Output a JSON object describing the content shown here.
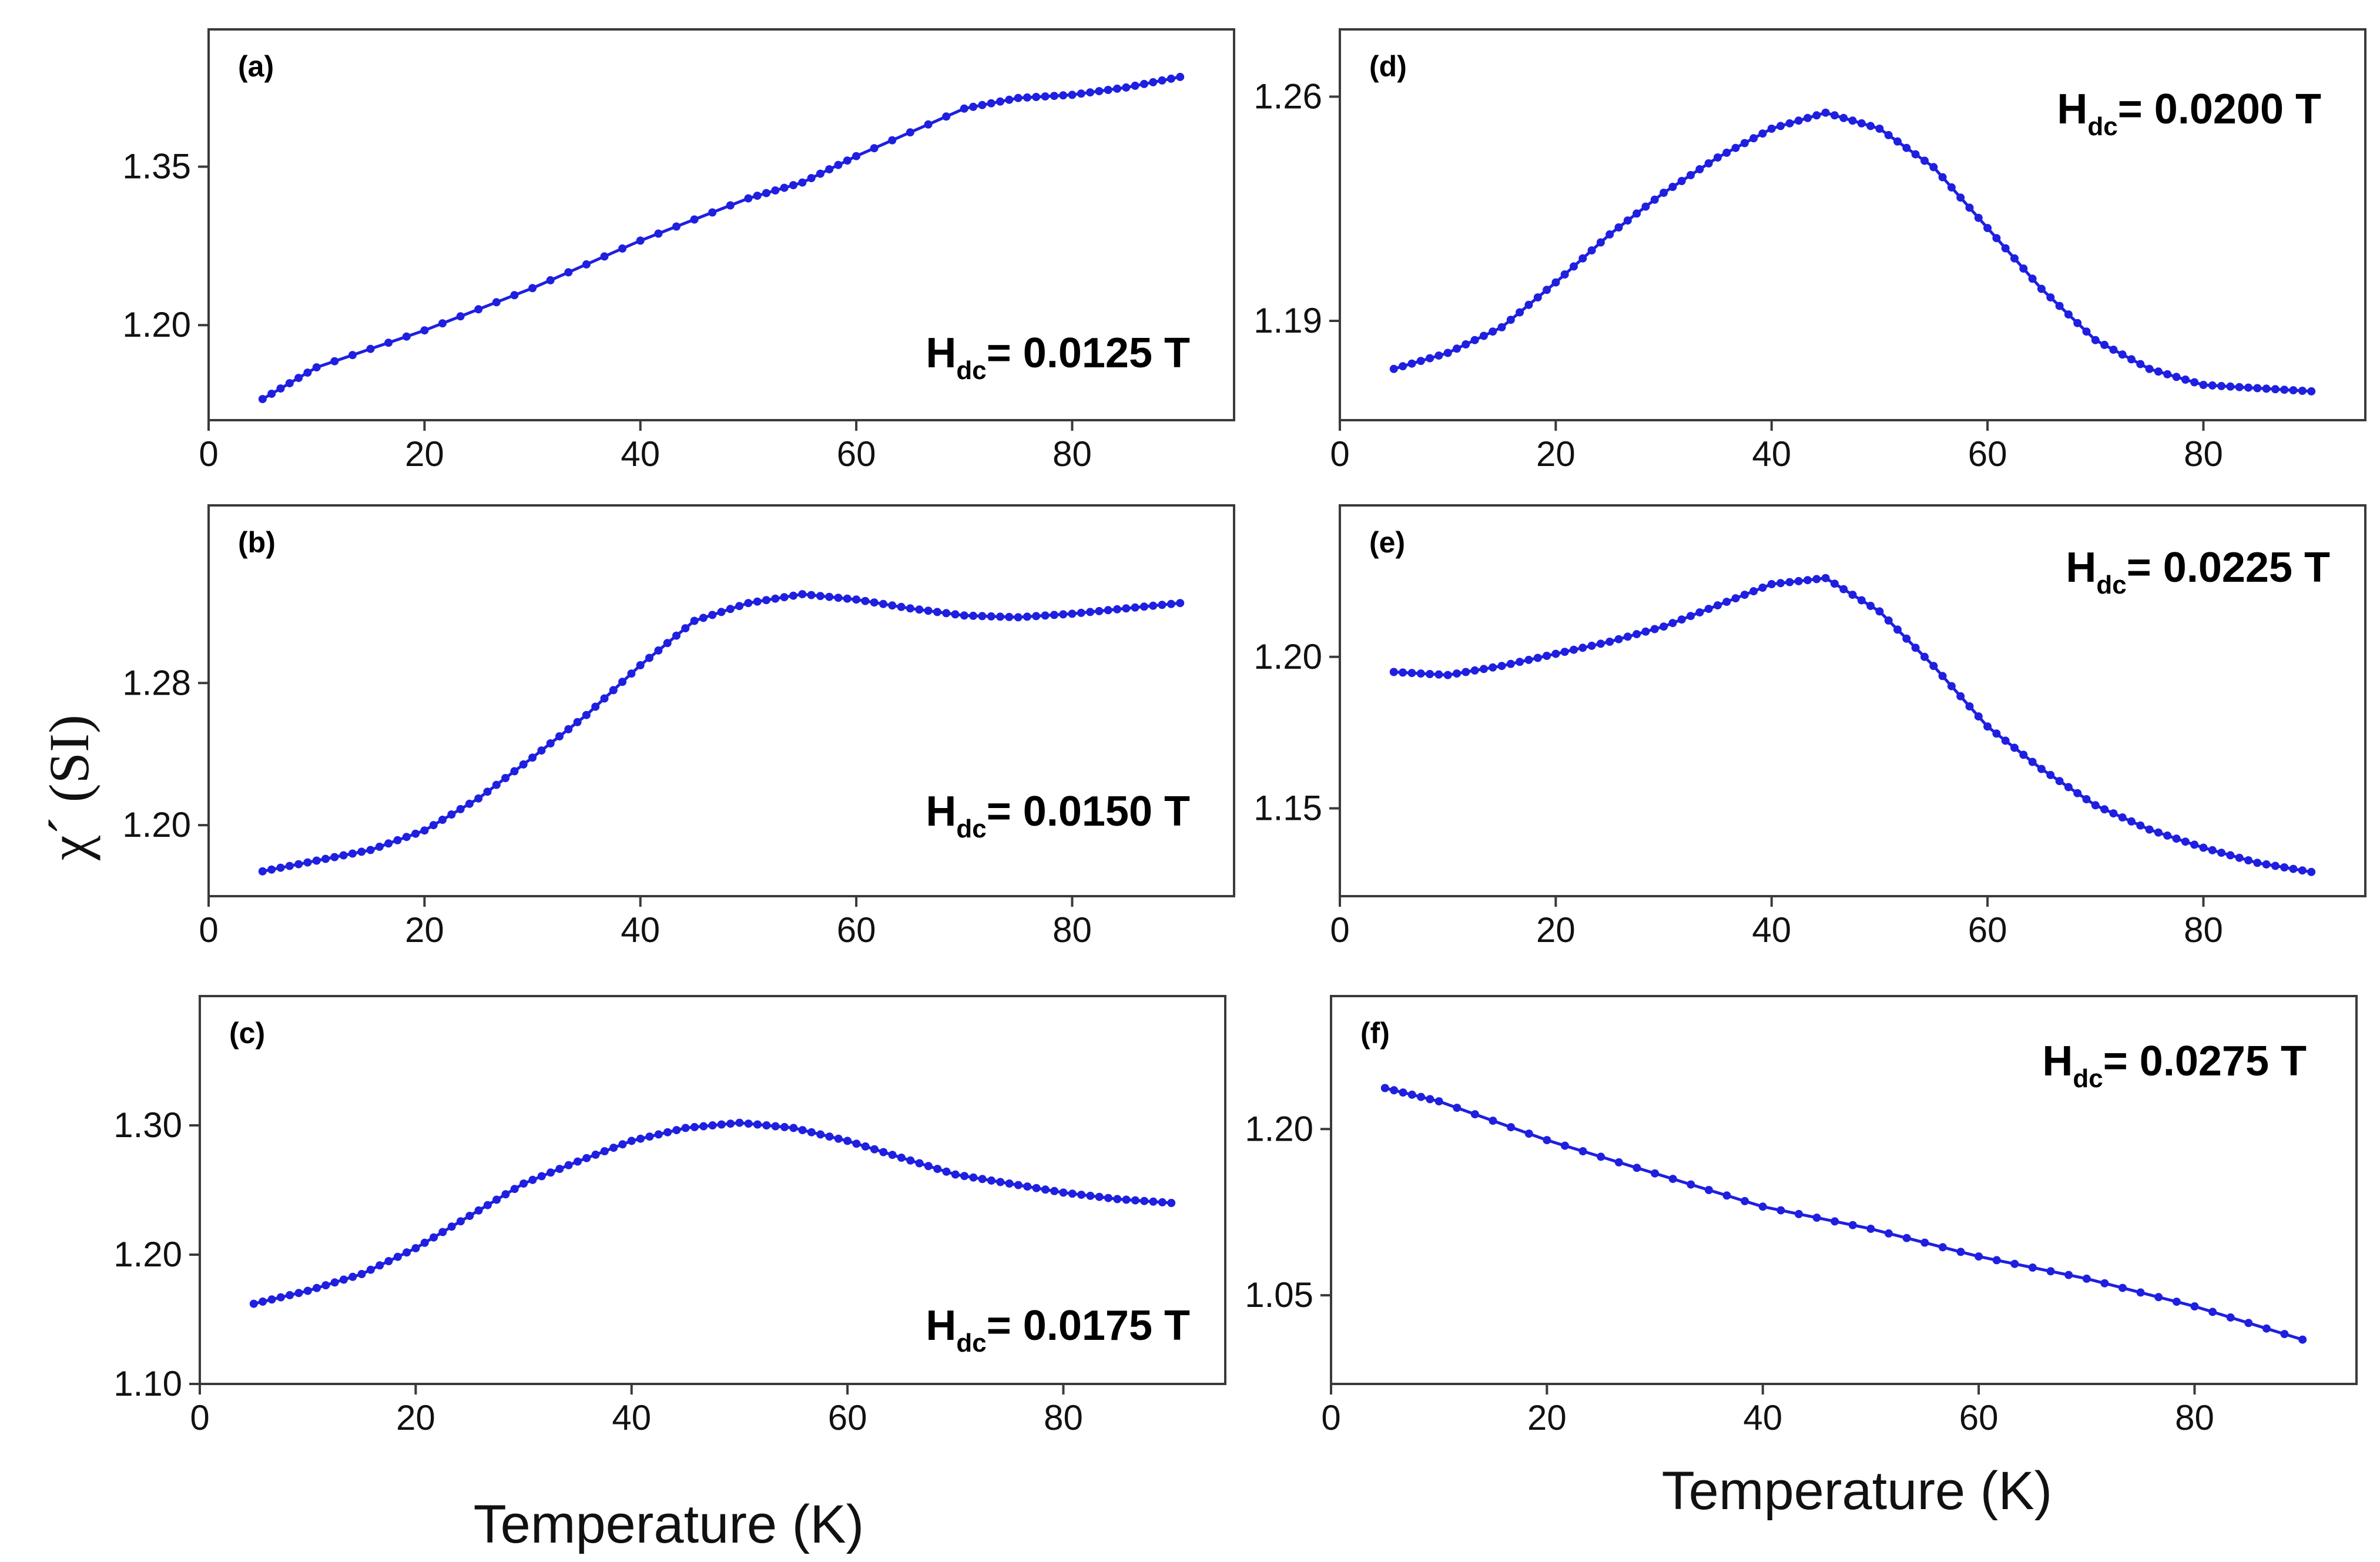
{
  "y_axis_label": "χ´ (SI)",
  "x_axis_label_left": "Temperature (K)",
  "x_axis_label_right": "Temperature (K)",
  "series_color": "#1f1fe0",
  "chart_data": [
    {
      "type": "line",
      "panel": "(a)",
      "field_prefix": "H",
      "field_sub": "dc",
      "field_value": "= 0.0125 T",
      "xlim": [
        0,
        95
      ],
      "xticks": [
        0,
        20,
        40,
        60,
        80
      ],
      "ylim": [
        1.11,
        1.48
      ],
      "yticks": [
        1.2,
        1.35
      ],
      "ytick_labels": [
        "1.20",
        "1.35"
      ],
      "x": [
        5,
        10,
        20,
        30,
        40,
        50,
        55,
        60,
        70,
        75,
        80,
        85,
        90
      ],
      "values": [
        1.13,
        1.16,
        1.195,
        1.235,
        1.28,
        1.32,
        1.335,
        1.36,
        1.405,
        1.415,
        1.418,
        1.425,
        1.435
      ]
    },
    {
      "type": "line",
      "panel": "(b)",
      "field_prefix": "H",
      "field_sub": "dc",
      "field_value": "= 0.0150 T",
      "xlim": [
        0,
        95
      ],
      "xticks": [
        0,
        20,
        40,
        60,
        80
      ],
      "ylim": [
        1.16,
        1.38
      ],
      "yticks": [
        1.2,
        1.28
      ],
      "ytick_labels": [
        "1.20",
        "1.28"
      ],
      "x": [
        5,
        10,
        15,
        20,
        25,
        30,
        35,
        40,
        45,
        50,
        55,
        60,
        65,
        70,
        75,
        80,
        85,
        90
      ],
      "values": [
        1.174,
        1.18,
        1.186,
        1.197,
        1.215,
        1.238,
        1.262,
        1.29,
        1.315,
        1.325,
        1.33,
        1.327,
        1.322,
        1.318,
        1.317,
        1.319,
        1.322,
        1.325
      ]
    },
    {
      "type": "line",
      "panel": "(c)",
      "field_prefix": "H",
      "field_sub": "dc",
      "field_value": "= 0.0175 T",
      "xlim": [
        0,
        95
      ],
      "xticks": [
        0,
        20,
        40,
        60,
        80
      ],
      "ylim": [
        1.1,
        1.4
      ],
      "yticks": [
        1.1,
        1.2,
        1.3
      ],
      "ytick_labels": [
        "1.10",
        "1.20",
        "1.30"
      ],
      "x": [
        5,
        10,
        15,
        20,
        25,
        30,
        35,
        40,
        45,
        50,
        55,
        60,
        65,
        70,
        75,
        80,
        85,
        90
      ],
      "values": [
        1.162,
        1.172,
        1.185,
        1.205,
        1.23,
        1.255,
        1.272,
        1.288,
        1.298,
        1.302,
        1.298,
        1.288,
        1.275,
        1.262,
        1.255,
        1.248,
        1.243,
        1.24
      ]
    },
    {
      "type": "line",
      "panel": "(d)",
      "field_prefix": "H",
      "field_sub": "dc",
      "field_value": "= 0.0200 T",
      "xlim": [
        0,
        95
      ],
      "xticks": [
        0,
        20,
        40,
        60,
        80
      ],
      "ylim": [
        1.159,
        1.281
      ],
      "yticks": [
        1.19,
        1.26
      ],
      "ytick_labels": [
        "1.19",
        "1.26"
      ],
      "x": [
        5,
        10,
        15,
        20,
        25,
        30,
        35,
        40,
        45,
        50,
        55,
        60,
        65,
        70,
        75,
        80,
        85,
        90
      ],
      "values": [
        1.175,
        1.18,
        1.188,
        1.202,
        1.217,
        1.23,
        1.241,
        1.25,
        1.255,
        1.25,
        1.238,
        1.219,
        1.2,
        1.184,
        1.175,
        1.17,
        1.169,
        1.168
      ]
    },
    {
      "type": "line",
      "panel": "(e)",
      "field_prefix": "H",
      "field_sub": "dc",
      "field_value": "= 0.0225 T",
      "xlim": [
        0,
        95
      ],
      "xticks": [
        0,
        20,
        40,
        60,
        80
      ],
      "ylim": [
        1.121,
        1.25
      ],
      "yticks": [
        1.15,
        1.2
      ],
      "ytick_labels": [
        "1.15",
        "1.20"
      ],
      "x": [
        5,
        10,
        15,
        20,
        25,
        30,
        35,
        40,
        45,
        50,
        55,
        60,
        65,
        70,
        75,
        80,
        85,
        90
      ],
      "values": [
        1.195,
        1.194,
        1.197,
        1.201,
        1.205,
        1.21,
        1.217,
        1.224,
        1.226,
        1.215,
        1.197,
        1.177,
        1.163,
        1.151,
        1.143,
        1.137,
        1.132,
        1.129
      ]
    },
    {
      "type": "line",
      "panel": "(f)",
      "field_prefix": "H",
      "field_sub": "dc",
      "field_value": "= 0.0275 T",
      "xlim": [
        0,
        95
      ],
      "xticks": [
        0,
        20,
        40,
        60,
        80
      ],
      "ylim": [
        0.97,
        1.32
      ],
      "yticks": [
        1.05,
        1.2
      ],
      "ytick_labels": [
        "1.05",
        "1.20"
      ],
      "x": [
        5,
        10,
        20,
        30,
        40,
        50,
        60,
        70,
        80,
        90
      ],
      "values": [
        1.237,
        1.225,
        1.19,
        1.16,
        1.13,
        1.11,
        1.085,
        1.065,
        1.04,
        1.01
      ]
    }
  ]
}
